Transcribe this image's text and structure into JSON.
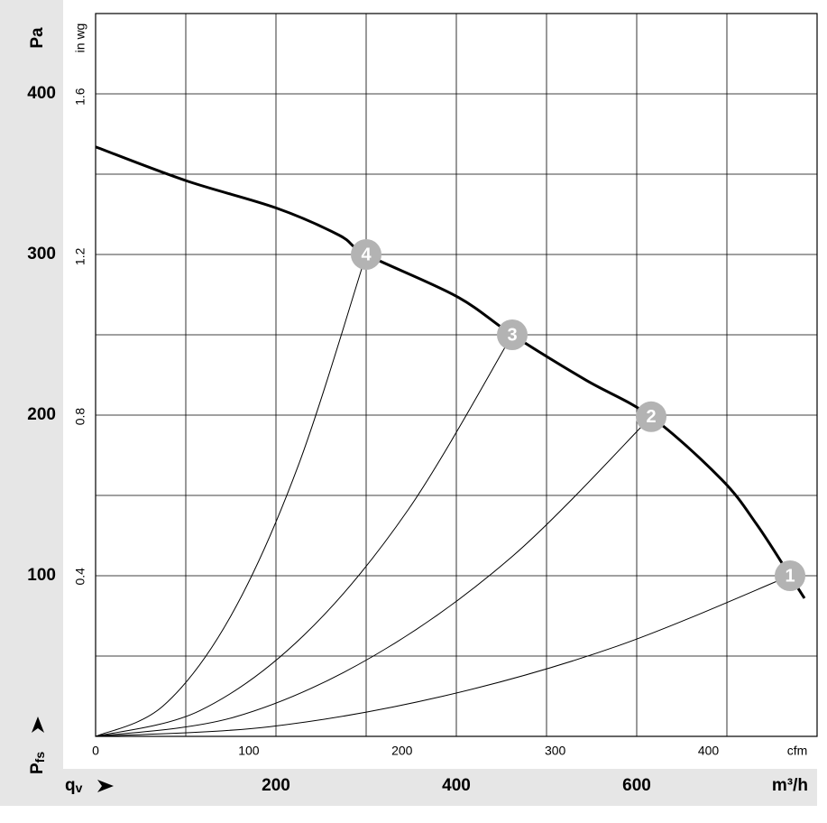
{
  "chart_data": {
    "type": "line",
    "y_label": "Pa",
    "y2_label": "in wg",
    "x_label": "m³/h",
    "x2_label": "cfm",
    "x_symbol": "q",
    "x_symbol_sub": "v",
    "y_symbol": "P",
    "y_symbol_sub": "fs",
    "xlim": [
      0,
      800
    ],
    "xticks": [
      200,
      400,
      600
    ],
    "xgrid": [
      100,
      200,
      300,
      400,
      500,
      600,
      700
    ],
    "x2lim": [
      0,
      470.9
    ],
    "x2ticks": [
      0,
      100,
      200,
      300,
      400
    ],
    "ylim": [
      0,
      450
    ],
    "yticks": [
      100,
      200,
      300,
      400
    ],
    "ygrid": [
      50,
      100,
      150,
      200,
      250,
      300,
      350,
      400
    ],
    "y2lim": [
      0,
      1.808
    ],
    "y2ticks": [
      0.4,
      0.8,
      1.2,
      1.6
    ],
    "series": [
      {
        "color": "#000000",
        "x": [
          0,
          100,
          200,
          270,
          300,
          400,
          462,
          543,
          616,
          694,
          733,
          770,
          786
        ],
        "values": [
          367,
          346,
          329,
          312,
          300,
          274,
          250,
          222,
          199,
          160,
          132,
          100,
          86
        ]
      },
      {
        "color": "#000000",
        "x": [
          0,
          75,
          150,
          225,
          300
        ],
        "values": [
          0,
          19,
          75,
          169,
          300
        ]
      },
      {
        "color": "#000000",
        "x": [
          0,
          115.5,
          231,
          346.5,
          462
        ],
        "values": [
          0,
          16,
          63,
          141,
          250
        ]
      },
      {
        "color": "#000000",
        "x": [
          0,
          154,
          308,
          462,
          616
        ],
        "values": [
          0,
          12,
          50,
          112,
          199
        ]
      },
      {
        "color": "#000000",
        "x": [
          0,
          192.5,
          385,
          577.5,
          770
        ],
        "values": [
          0,
          6,
          25,
          56,
          100
        ]
      }
    ],
    "operating_points": {
      "x": [
        770,
        616,
        462,
        300
      ],
      "values": [
        100,
        199,
        250,
        300
      ],
      "labels": [
        "1",
        "2",
        "3",
        "4"
      ],
      "color": "#b3b3b3"
    }
  }
}
